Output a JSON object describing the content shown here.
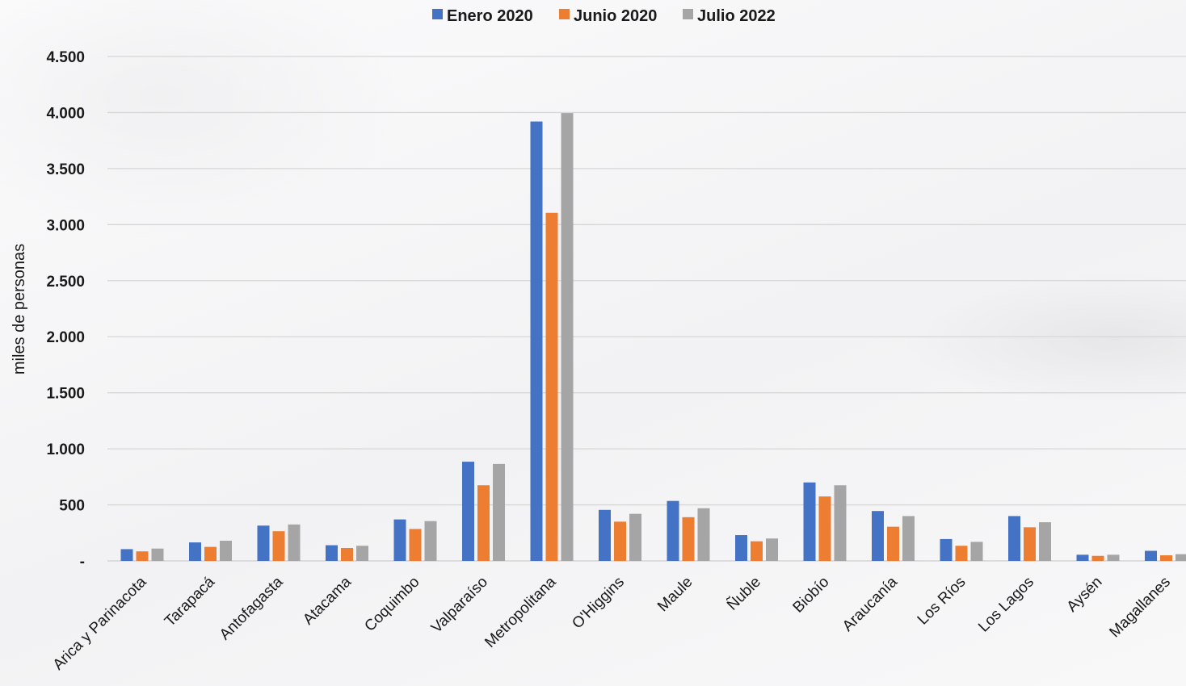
{
  "chart_data": {
    "type": "bar",
    "ylabel": "miles de personas",
    "xlabel": "",
    "ylim": [
      0,
      4500
    ],
    "yticks": [
      0,
      500,
      1000,
      1500,
      2000,
      2500,
      3000,
      3500,
      4000,
      4500
    ],
    "ytick_labels": [
      "-",
      "500",
      "1.000",
      "1.500",
      "2.000",
      "2.500",
      "3.000",
      "3.500",
      "4.000",
      "4.500"
    ],
    "grid": true,
    "legend_position": "top-center",
    "categories": [
      "Arica y Parinacota",
      "Tarapacá",
      "Antofagasta",
      "Atacama",
      "Coquimbo",
      "Valparaíso",
      "Metropolitana",
      "O'Higgins",
      "Maule",
      "Ñuble",
      "Biobío",
      "Araucanía",
      "Los Ríos",
      "Los Lagos",
      "Aysén",
      "Magallanes"
    ],
    "series": [
      {
        "name": "Enero 2020",
        "color": "#4472C4",
        "values": [
          105,
          165,
          315,
          140,
          370,
          885,
          3920,
          455,
          535,
          230,
          700,
          445,
          195,
          400,
          55,
          90
        ]
      },
      {
        "name": "Junio 2020",
        "color": "#ED7D31",
        "values": [
          85,
          125,
          265,
          115,
          285,
          675,
          3105,
          350,
          390,
          175,
          575,
          305,
          135,
          300,
          45,
          50
        ]
      },
      {
        "name": "Julio 2022",
        "color": "#A5A5A5",
        "values": [
          110,
          180,
          325,
          135,
          355,
          865,
          3995,
          420,
          470,
          200,
          675,
          400,
          170,
          345,
          55,
          60
        ]
      }
    ]
  }
}
